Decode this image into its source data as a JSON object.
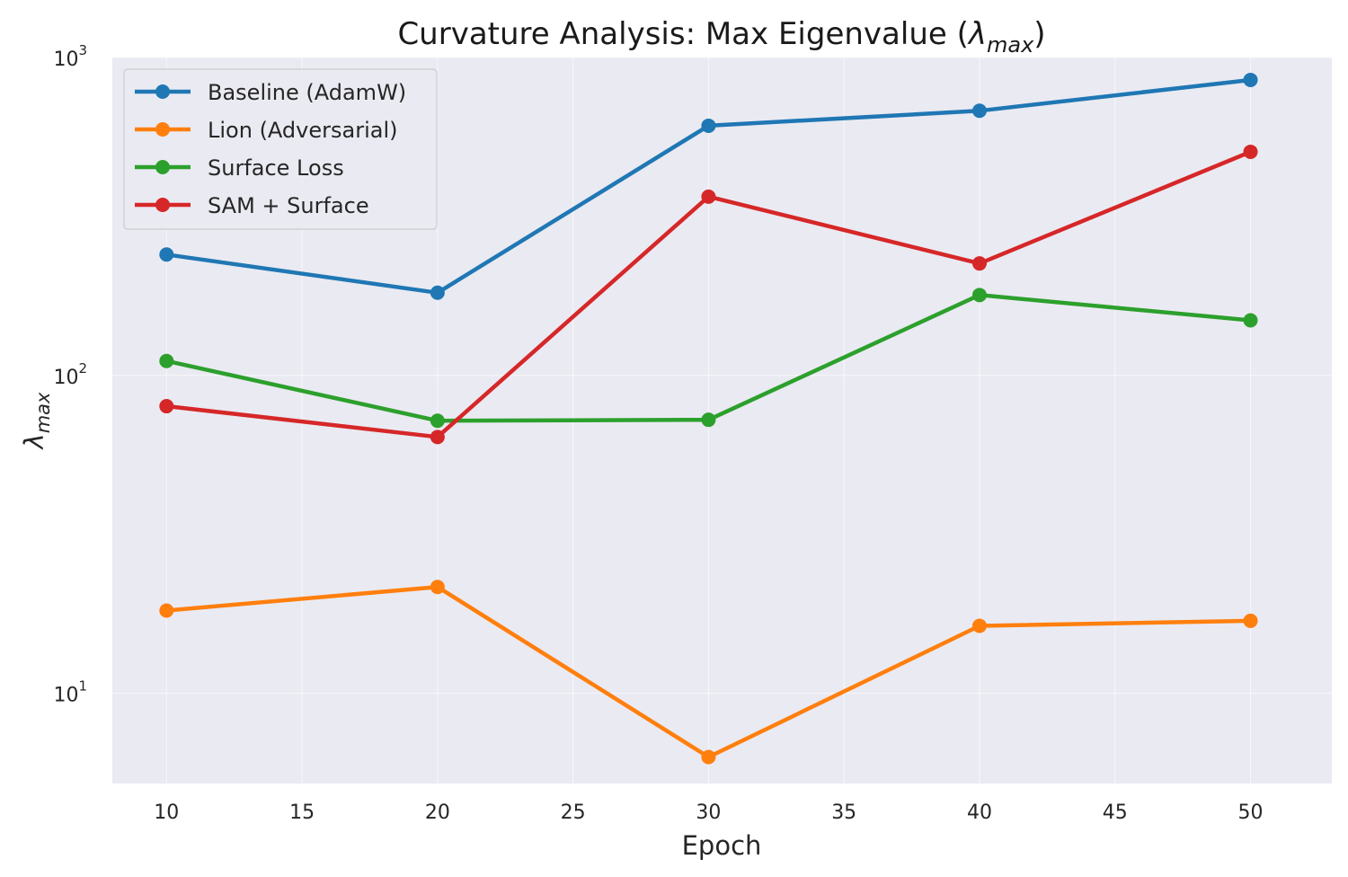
{
  "chart_data": {
    "type": "line",
    "title_main": "Curvature Analysis: Max Eigenvalue (",
    "title_symbol": "λ",
    "title_subscript": "max",
    "title_close": ")",
    "xlabel": "Epoch",
    "ylabel_symbol": "λ",
    "ylabel_subscript": "max",
    "x_scale": "linear",
    "y_scale": "log",
    "xlim": [
      8,
      53
    ],
    "ylim": [
      5.2,
      1000
    ],
    "x_ticks": [
      10,
      15,
      20,
      25,
      30,
      35,
      40,
      45,
      50
    ],
    "y_ticks": [
      {
        "value": 10,
        "base": "10",
        "exp": "1"
      },
      {
        "value": 100,
        "base": "10",
        "exp": "2"
      },
      {
        "value": 1000,
        "base": "10",
        "exp": "3"
      }
    ],
    "grid": true,
    "background": "#eaeaf2",
    "legend_position": "upper-left",
    "x": [
      10,
      20,
      30,
      40,
      50
    ],
    "series": [
      {
        "name": "Baseline (AdamW)",
        "color": "#1f77b4",
        "values": [
          240,
          182,
          610,
          680,
          850
        ]
      },
      {
        "name": "Lion (Adversarial)",
        "color": "#ff7f0e",
        "values": [
          18.2,
          21.6,
          6.3,
          16.3,
          16.9
        ]
      },
      {
        "name": "Surface Loss",
        "color": "#2ca02c",
        "values": [
          111,
          72,
          72.5,
          179,
          149
        ]
      },
      {
        "name": "SAM + Surface",
        "color": "#d62728",
        "values": [
          80,
          64,
          365,
          225,
          505
        ]
      }
    ]
  }
}
